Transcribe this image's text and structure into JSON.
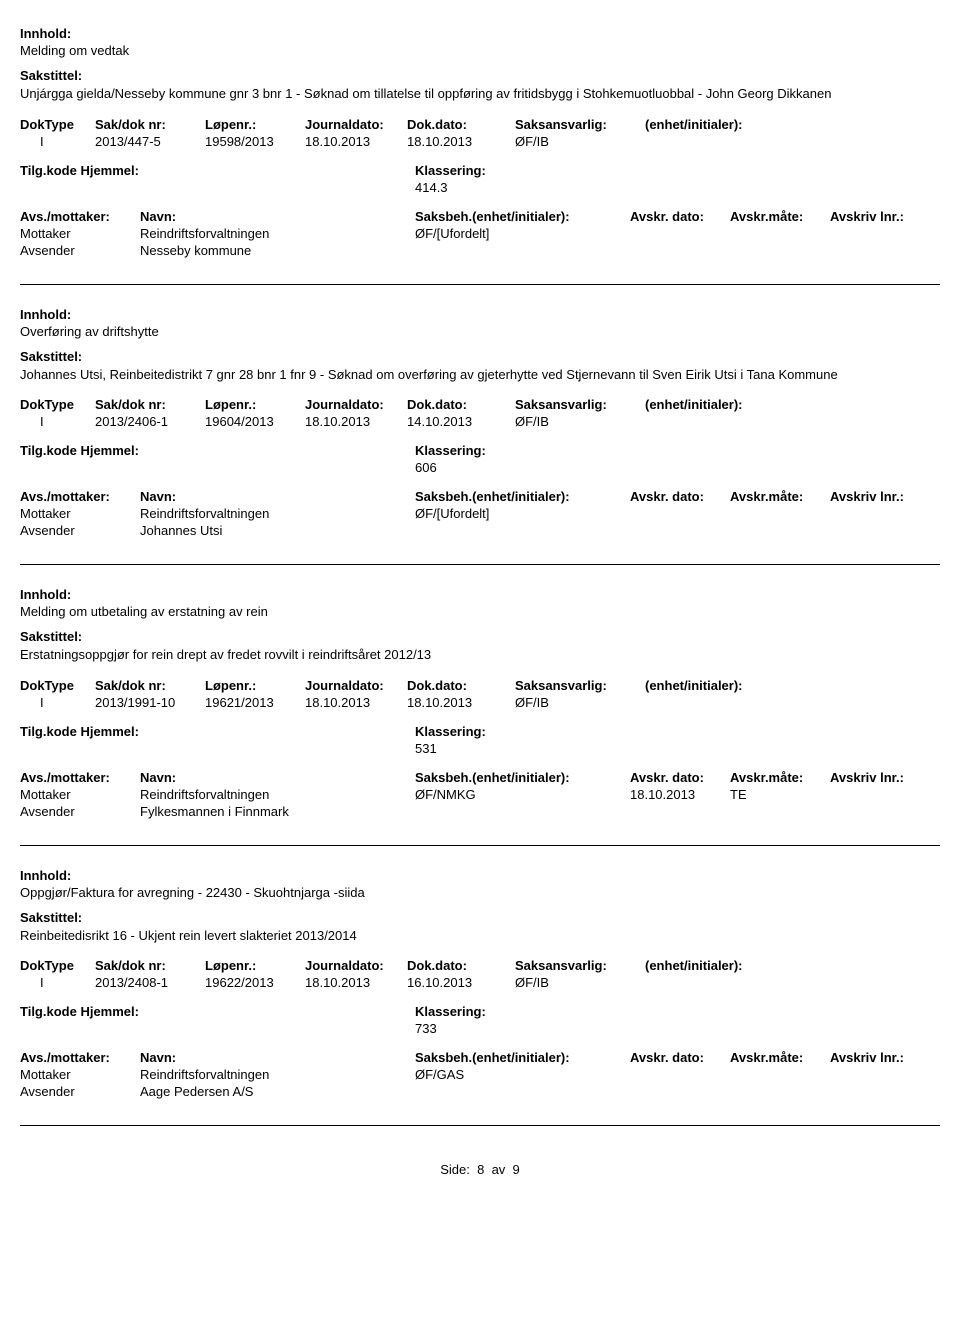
{
  "labels": {
    "innhold": "Innhold:",
    "sakstittel": "Sakstittel:",
    "doktype": "DokType",
    "sakdoknr": "Sak/dok nr:",
    "lopenr": "Løpenr.:",
    "journaldato": "Journaldato:",
    "dokdato": "Dok.dato:",
    "saksansvarlig": "Saksansvarlig:",
    "enhetinit": "(enhet/initialer):",
    "tilgkode": "Tilg.kode",
    "hjemmel": "Hjemmel:",
    "klassering": "Klassering:",
    "avsmottaker": "Avs./mottaker:",
    "navn": "Navn:",
    "saksbeh": "Saksbeh.(enhet/initialer):",
    "avskrdato": "Avskr. dato:",
    "avskrmate": "Avskr.måte:",
    "avskrivlnr": "Avskriv lnr.:",
    "mottaker": "Mottaker",
    "avsender": "Avsender"
  },
  "records": [
    {
      "innhold": "Melding om vedtak",
      "sakstittel": "Unjárgga gielda/Nesseby kommune gnr 3 bnr 1 - Søknad om tillatelse til oppføring av fritidsbygg i Stohkemuotluobbal - John Georg Dikkanen",
      "doktype": "I",
      "sakdoknr": "2013/447-5",
      "lopenr": "19598/2013",
      "journaldato": "18.10.2013",
      "dokdato": "18.10.2013",
      "saksansvarlig": "ØF/IB",
      "enhetinit": "",
      "klassering": "414.3",
      "mottaker_name": "Reindriftsforvaltningen",
      "mottaker_sbeh": "ØF/[Ufordelt]",
      "mottaker_adato": "",
      "mottaker_amate": "",
      "avsender_name": "Nesseby kommune"
    },
    {
      "innhold": "Overføring av driftshytte",
      "sakstittel": "Johannes Utsi, Reinbeitedistrikt 7 gnr 28 bnr 1 fnr 9 - Søknad om overføring av gjeterhytte ved Stjernevann til Sven Eirik Utsi i Tana Kommune",
      "doktype": "I",
      "sakdoknr": "2013/2406-1",
      "lopenr": "19604/2013",
      "journaldato": "18.10.2013",
      "dokdato": "14.10.2013",
      "saksansvarlig": "ØF/IB",
      "enhetinit": "",
      "klassering": "606",
      "mottaker_name": "Reindriftsforvaltningen",
      "mottaker_sbeh": "ØF/[Ufordelt]",
      "mottaker_adato": "",
      "mottaker_amate": "",
      "avsender_name": "Johannes Utsi"
    },
    {
      "innhold": "Melding om utbetaling av erstatning av rein",
      "sakstittel": "Erstatningsoppgjør for rein drept av fredet rovvilt i reindriftsåret 2012/13",
      "doktype": "I",
      "sakdoknr": "2013/1991-10",
      "lopenr": "19621/2013",
      "journaldato": "18.10.2013",
      "dokdato": "18.10.2013",
      "saksansvarlig": "ØF/IB",
      "enhetinit": "",
      "klassering": "531",
      "mottaker_name": "Reindriftsforvaltningen",
      "mottaker_sbeh": "ØF/NMKG",
      "mottaker_adato": "18.10.2013",
      "mottaker_amate": "TE",
      "avsender_name": "Fylkesmannen i Finnmark"
    },
    {
      "innhold": "Oppgjør/Faktura for avregning - 22430 - Skuohtnjarga -siida",
      "sakstittel": "Reinbeitedisrikt 16 - Ukjent rein levert slakteriet 2013/2014",
      "doktype": "I",
      "sakdoknr": "2013/2408-1",
      "lopenr": "19622/2013",
      "journaldato": "18.10.2013",
      "dokdato": "16.10.2013",
      "saksansvarlig": "ØF/IB",
      "enhetinit": "",
      "klassering": "733",
      "mottaker_name": "Reindriftsforvaltningen",
      "mottaker_sbeh": "ØF/GAS",
      "mottaker_adato": "",
      "mottaker_amate": "",
      "avsender_name": "Aage Pedersen A/S"
    }
  ],
  "footer": {
    "side_label": "Side:",
    "page": "8",
    "av": "av",
    "total": "9"
  }
}
